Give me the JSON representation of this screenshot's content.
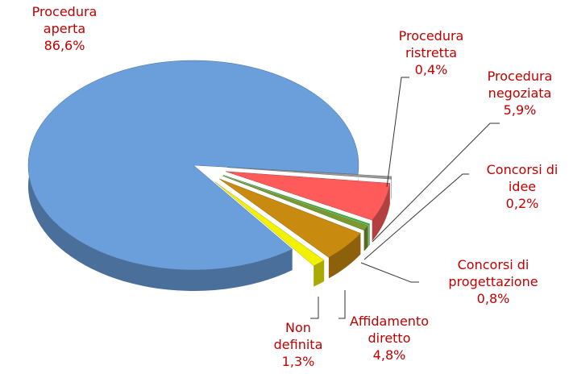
{
  "chart_data": {
    "type": "pie",
    "categories": [
      "Procedura aperta",
      "Procedura ristretta",
      "Procedura negoziata",
      "Concorsi di idee",
      "Concorsi di progettazione",
      "Affidamento diretto",
      "Non definita"
    ],
    "values": [
      86.6,
      0.4,
      5.9,
      0.2,
      0.8,
      4.8,
      1.3
    ],
    "value_labels": [
      "86,6%",
      "0,4%",
      "5,9%",
      "0,2%",
      "0,8%",
      "4,8%",
      "1,3%"
    ],
    "colors": [
      "#6a9fdc",
      "#9a9a9a",
      "#ff5b5b",
      "#2fbf2f",
      "#7a9a30",
      "#c98a10",
      "#f2f200"
    ]
  }
}
